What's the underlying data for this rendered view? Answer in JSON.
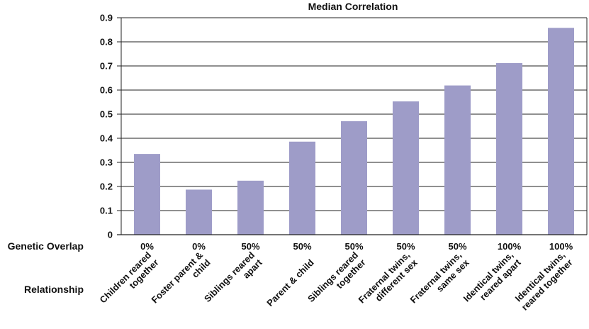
{
  "chart_data": {
    "type": "bar",
    "title": "Median Correlation",
    "ylim": [
      0,
      0.9
    ],
    "yticks": [
      "0",
      "0.1",
      "0.2",
      "0.3",
      "0.4",
      "0.5",
      "0.6",
      "0.7",
      "0.8",
      "0.9"
    ],
    "grid": true,
    "bar_color": "#9e9cc8",
    "row_labels": {
      "overlap": "Genetic Overlap",
      "relationship": "Relationship"
    },
    "categories": [
      {
        "lines": [
          "Children reared",
          "together"
        ],
        "overlap": "0%",
        "value": 0.335
      },
      {
        "lines": [
          "Foster parent &",
          "child"
        ],
        "overlap": "0%",
        "value": 0.187
      },
      {
        "lines": [
          "Siblings reared",
          "apart"
        ],
        "overlap": "50%",
        "value": 0.224
      },
      {
        "lines": [
          "Parent & child"
        ],
        "overlap": "50%",
        "value": 0.386
      },
      {
        "lines": [
          "Siblings reared",
          "together"
        ],
        "overlap": "50%",
        "value": 0.471
      },
      {
        "lines": [
          "Fraternal twins,",
          "different sex"
        ],
        "overlap": "50%",
        "value": 0.553
      },
      {
        "lines": [
          "Fraternal twins,",
          "same sex"
        ],
        "overlap": "50%",
        "value": 0.619
      },
      {
        "lines": [
          "Identical twins,",
          "reared apart"
        ],
        "overlap": "100%",
        "value": 0.712
      },
      {
        "lines": [
          "Identical twins,",
          "reared together"
        ],
        "overlap": "100%",
        "value": 0.858
      }
    ]
  }
}
